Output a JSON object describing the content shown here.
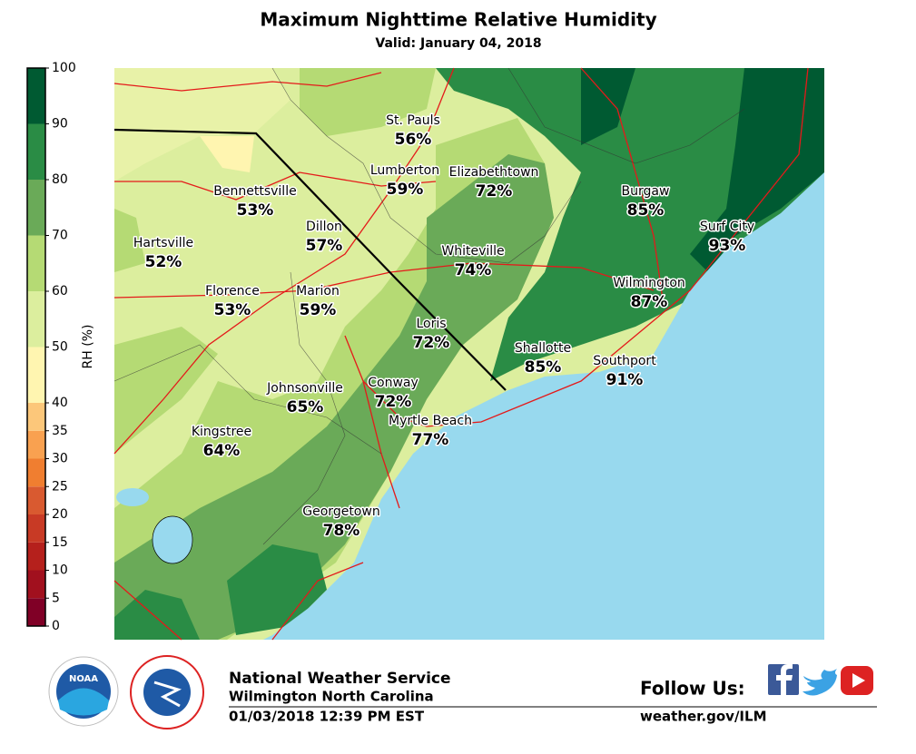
{
  "header": {
    "title": "Maximum Nighttime Relative Humidity",
    "subtitle": "Valid: January 04, 2018"
  },
  "colorbar": {
    "label": "RH (%)",
    "ticks": [
      0,
      5,
      10,
      15,
      20,
      25,
      30,
      35,
      40,
      50,
      60,
      70,
      80,
      90,
      100
    ],
    "bands": [
      {
        "from": 0,
        "to": 5,
        "color": "#800026"
      },
      {
        "from": 5,
        "to": 10,
        "color": "#a1101e"
      },
      {
        "from": 10,
        "to": 15,
        "color": "#b5201c"
      },
      {
        "from": 15,
        "to": 20,
        "color": "#c83a25"
      },
      {
        "from": 20,
        "to": 25,
        "color": "#d95a30"
      },
      {
        "from": 25,
        "to": 30,
        "color": "#f07e30"
      },
      {
        "from": 30,
        "to": 35,
        "color": "#f9a150"
      },
      {
        "from": 35,
        "to": 40,
        "color": "#fcc77a"
      },
      {
        "from": 40,
        "to": 50,
        "color": "#fff5b0"
      },
      {
        "from": 50,
        "to": 60,
        "color": "#dcee9e"
      },
      {
        "from": 60,
        "to": 70,
        "color": "#b5da74"
      },
      {
        "from": 70,
        "to": 80,
        "color": "#6aaa58"
      },
      {
        "from": 80,
        "to": 90,
        "color": "#2a8c45"
      },
      {
        "from": 90,
        "to": 100,
        "color": "#005a32"
      }
    ]
  },
  "cities": [
    {
      "name": "St. Pauls",
      "value": "56%"
    },
    {
      "name": "Lumberton",
      "value": "59%"
    },
    {
      "name": "Elizabethtown",
      "value": "72%"
    },
    {
      "name": "Bennettsville",
      "value": "53%"
    },
    {
      "name": "Dillon",
      "value": "57%"
    },
    {
      "name": "Hartsville",
      "value": "52%"
    },
    {
      "name": "Burgaw",
      "value": "85%"
    },
    {
      "name": "Surf City",
      "value": "93%"
    },
    {
      "name": "Whiteville",
      "value": "74%"
    },
    {
      "name": "Wilmington",
      "value": "87%"
    },
    {
      "name": "Florence",
      "value": "53%"
    },
    {
      "name": "Marion",
      "value": "59%"
    },
    {
      "name": "Loris",
      "value": "72%"
    },
    {
      "name": "Shallotte",
      "value": "85%"
    },
    {
      "name": "Southport",
      "value": "91%"
    },
    {
      "name": "Johnsonville",
      "value": "65%"
    },
    {
      "name": "Conway",
      "value": "72%"
    },
    {
      "name": "Myrtle Beach",
      "value": "77%"
    },
    {
      "name": "Kingstree",
      "value": "64%"
    },
    {
      "name": "Georgetown",
      "value": "78%"
    }
  ],
  "footer": {
    "logo": "NOAA",
    "agency": "National Weather Service",
    "office": "Wilmington North Carolina",
    "issued": "01/03/2018 12:39 PM EST",
    "follow": "Follow Us:",
    "url": "weather.gov/ILM"
  }
}
